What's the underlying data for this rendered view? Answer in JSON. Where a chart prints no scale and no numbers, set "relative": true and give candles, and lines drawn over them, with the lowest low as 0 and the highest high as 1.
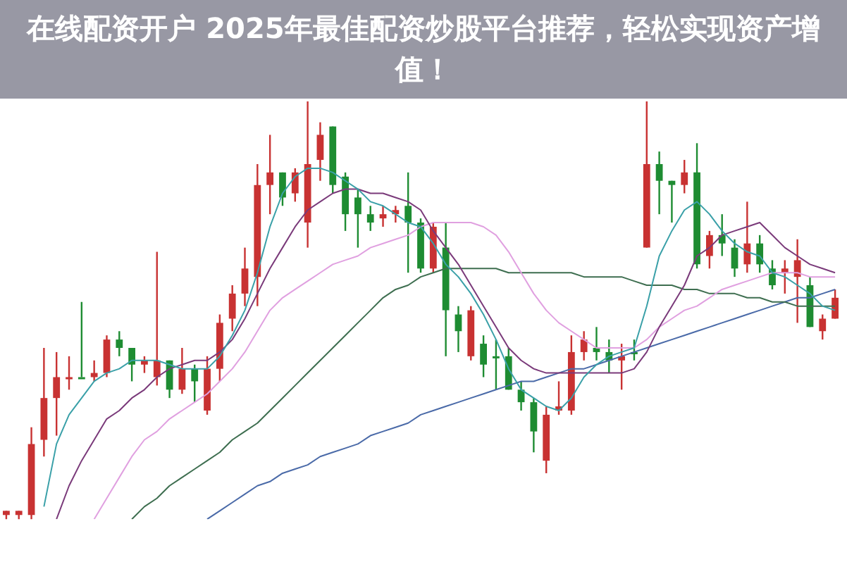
{
  "chart_data": {
    "type": "candlestick",
    "title": "在线配资开户 2025年最佳配资炒股平台推荐，轻松实现资产增值！",
    "relative": true,
    "legend": false,
    "marker": "none",
    "categories": [
      null,
      null,
      null,
      null,
      null,
      null,
      null,
      null,
      null,
      null,
      null,
      null,
      null,
      null,
      null,
      null,
      null,
      null,
      null,
      null,
      null,
      null,
      null,
      null,
      null,
      null,
      null,
      null,
      null,
      null,
      null,
      null,
      null,
      null,
      null,
      null,
      null,
      null,
      null,
      null,
      null,
      null,
      null,
      null,
      null,
      null,
      null,
      null,
      null,
      null,
      null,
      null,
      null,
      null,
      null,
      null,
      null,
      null,
      null,
      null,
      null,
      null,
      null,
      null,
      null,
      null,
      null
    ],
    "ohlc": [
      [
        0.01,
        0.02,
        0,
        0.02
      ],
      [
        0.01,
        0.02,
        0,
        0.02
      ],
      [
        0.01,
        0.22,
        0,
        0.18
      ],
      [
        0.19,
        0.41,
        0.15,
        0.29
      ],
      [
        0.29,
        0.4,
        0.2,
        0.34
      ],
      [
        0.34,
        0.39,
        0.31,
        0.34
      ],
      [
        0.34,
        0.52,
        0.34,
        0.34
      ],
      [
        0.34,
        0.38,
        0.33,
        0.35
      ],
      [
        0.35,
        0.44,
        0.34,
        0.43
      ],
      [
        0.43,
        0.45,
        0.39,
        0.41
      ],
      [
        0.41,
        0.41,
        0.33,
        0.37
      ],
      [
        0.37,
        0.39,
        0.35,
        0.38
      ],
      [
        0.34,
        0.64,
        0.32,
        0.38
      ],
      [
        0.38,
        0.38,
        0.29,
        0.31
      ],
      [
        0.31,
        0.41,
        0.3,
        0.36
      ],
      [
        0.36,
        0.37,
        0.28,
        0.33
      ],
      [
        0.26,
        0.39,
        0.25,
        0.36
      ],
      [
        0.36,
        0.49,
        0.33,
        0.47
      ],
      [
        0.48,
        0.56,
        0.45,
        0.54
      ],
      [
        0.54,
        0.65,
        0.51,
        0.6
      ],
      [
        0.58,
        0.85,
        0.51,
        0.8
      ],
      [
        0.8,
        0.92,
        0.73,
        0.83
      ],
      [
        0.83,
        0.83,
        0.75,
        0.77
      ],
      [
        0.78,
        0.84,
        0.76,
        0.83
      ],
      [
        0.71,
        1,
        0.65,
        0.85
      ],
      [
        0.86,
        0.95,
        0.81,
        0.92
      ],
      [
        0.94,
        0.94,
        0.78,
        0.8
      ],
      [
        0.82,
        0.83,
        0.69,
        0.73
      ],
      [
        0.77,
        0.79,
        0.65,
        0.73
      ],
      [
        0.73,
        0.75,
        0.69,
        0.71
      ],
      [
        0.72,
        0.75,
        0.7,
        0.73
      ],
      [
        0.73,
        0.75,
        0.71,
        0.74
      ],
      [
        0.75,
        0.83,
        0.59,
        0.71
      ],
      [
        0.71,
        0.72,
        0.59,
        0.6
      ],
      [
        0.6,
        0.71,
        0.59,
        0.7
      ],
      [
        0.65,
        0.71,
        0.39,
        0.5
      ],
      [
        0.49,
        0.51,
        0.4,
        0.45
      ],
      [
        0.39,
        0.51,
        0.38,
        0.5
      ],
      [
        0.42,
        0.44,
        0.34,
        0.37
      ],
      [
        0.39,
        0.43,
        0.31,
        0.39
      ],
      [
        0.39,
        0.41,
        0.31,
        0.31
      ],
      [
        0.31,
        0.33,
        0.26,
        0.28
      ],
      [
        0.28,
        0.29,
        0.16,
        0.21
      ],
      [
        0.14,
        0.27,
        0.11,
        0.25
      ],
      [
        0.26,
        0.33,
        0.25,
        0.27
      ],
      [
        0.26,
        0.44,
        0.25,
        0.4
      ],
      [
        0.4,
        0.45,
        0.38,
        0.43
      ],
      [
        0.41,
        0.46,
        0.38,
        0.4
      ],
      [
        0.4,
        0.43,
        0.35,
        0.38
      ],
      [
        0.38,
        0.42,
        0.31,
        0.39
      ],
      [
        0.4,
        0.43,
        0.38,
        0.4
      ],
      [
        0.65,
        1,
        0.65,
        0.85
      ],
      [
        0.85,
        0.88,
        0.73,
        0.81
      ],
      [
        0.81,
        0.81,
        0.71,
        0.8
      ],
      [
        0.8,
        0.86,
        0.78,
        0.83
      ],
      [
        0.83,
        0.9,
        0.6,
        0.61
      ],
      [
        0.63,
        0.69,
        0.6,
        0.68
      ],
      [
        0.68,
        0.73,
        0.63,
        0.66
      ],
      [
        0.65,
        0.67,
        0.58,
        0.6
      ],
      [
        0.61,
        0.76,
        0.59,
        0.66
      ],
      [
        0.66,
        0.68,
        0.59,
        0.61
      ],
      [
        0.6,
        0.62,
        0.55,
        0.56
      ],
      [
        0.59,
        0.62,
        0.54,
        0.6
      ],
      [
        0.58,
        0.67,
        0.47,
        0.62
      ],
      [
        0.56,
        0.58,
        0.46,
        0.46
      ],
      [
        0.45,
        0.49,
        0.43,
        0.48
      ],
      [
        0.48,
        0.55,
        0.48,
        0.53
      ]
    ],
    "colors": [
      "#c83232",
      "#c83232",
      "#c83232",
      "#c83232",
      "#c83232",
      "#c83232",
      "#1e8c32",
      "#c83232",
      "#c83232",
      "#1e8c32",
      "#1e8c32",
      "#c83232",
      "#c83232",
      "#1e8c32",
      "#c83232",
      "#1e8c32",
      "#c83232",
      "#c83232",
      "#c83232",
      "#c83232",
      "#c83232",
      "#c83232",
      "#1e8c32",
      "#c83232",
      "#c83232",
      "#c83232",
      "#1e8c32",
      "#1e8c32",
      "#1e8c32",
      "#1e8c32",
      "#c83232",
      "#c83232",
      "#1e8c32",
      "#1e8c32",
      "#c83232",
      "#1e8c32",
      "#1e8c32",
      "#c83232",
      "#1e8c32",
      "#1e8c32",
      "#1e8c32",
      "#1e8c32",
      "#1e8c32",
      "#c83232",
      "#c83232",
      "#c83232",
      "#c83232",
      "#1e8c32",
      "#1e8c32",
      "#c83232",
      "#1e8c32",
      "#c83232",
      "#1e8c32",
      "#1e8c32",
      "#c83232",
      "#1e8c32",
      "#c83232",
      "#1e8c32",
      "#1e8c32",
      "#c83232",
      "#1e8c32",
      "#1e8c32",
      "#c83232",
      "#c83232",
      "#1e8c32",
      "#c83232",
      "#c83232"
    ],
    "series": [
      {
        "type": "line",
        "color": "#3aa0a8",
        "values": [
          null,
          null,
          null,
          0.03,
          0.18,
          0.25,
          0.29,
          0.33,
          0.35,
          0.36,
          0.38,
          0.38,
          0.38,
          0.37,
          0.36,
          0.36,
          0.36,
          0.39,
          0.44,
          0.5,
          0.59,
          0.7,
          0.78,
          0.82,
          0.84,
          0.84,
          0.83,
          0.81,
          0.79,
          0.76,
          0.75,
          0.73,
          0.71,
          0.7,
          0.66,
          0.61,
          0.58,
          0.54,
          0.49,
          0.43,
          0.36,
          0.31,
          0.29,
          0.27,
          0.26,
          0.29,
          0.34,
          0.37,
          0.39,
          0.4,
          0.41,
          0.51,
          0.63,
          0.69,
          0.74,
          0.76,
          0.73,
          0.69,
          0.66,
          0.64,
          0.63,
          0.59,
          0.58,
          0.56,
          0.54,
          0.51,
          0.5
        ]
      },
      {
        "type": "line",
        "color": "#7a3a7a",
        "values": [
          null,
          null,
          null,
          null,
          0,
          0.08,
          0.14,
          0.19,
          0.24,
          0.26,
          0.29,
          0.31,
          0.34,
          0.36,
          0.37,
          0.38,
          0.38,
          0.4,
          0.43,
          0.48,
          0.54,
          0.6,
          0.65,
          0.7,
          0.74,
          0.76,
          0.78,
          0.79,
          0.79,
          0.78,
          0.78,
          0.77,
          0.76,
          0.74,
          0.69,
          0.65,
          0.61,
          0.56,
          0.51,
          0.46,
          0.41,
          0.38,
          0.36,
          0.35,
          0.35,
          0.35,
          0.35,
          0.35,
          0.35,
          0.35,
          0.36,
          0.4,
          0.46,
          0.51,
          0.56,
          0.63,
          0.65,
          0.68,
          0.69,
          0.7,
          0.71,
          0.68,
          0.65,
          0.63,
          0.61,
          0.6,
          0.59
        ]
      },
      {
        "type": "line",
        "color": "#e0a0e0",
        "values": [
          null,
          null,
          null,
          null,
          null,
          null,
          null,
          0,
          0.05,
          0.1,
          0.15,
          0.19,
          0.21,
          0.24,
          0.26,
          0.28,
          0.3,
          0.33,
          0.36,
          0.4,
          0.45,
          0.5,
          0.53,
          0.55,
          0.57,
          0.59,
          0.61,
          0.62,
          0.63,
          0.65,
          0.66,
          0.67,
          0.68,
          0.7,
          0.71,
          0.71,
          0.71,
          0.71,
          0.7,
          0.68,
          0.64,
          0.59,
          0.54,
          0.5,
          0.47,
          0.45,
          0.43,
          0.41,
          0.41,
          0.41,
          0.41,
          0.43,
          0.46,
          0.48,
          0.5,
          0.51,
          0.53,
          0.55,
          0.56,
          0.57,
          0.58,
          0.59,
          0.59,
          0.59,
          0.58,
          0.58,
          0.58
        ]
      },
      {
        "type": "line",
        "color": "#3e6e50",
        "values": [
          null,
          null,
          null,
          null,
          null,
          null,
          null,
          null,
          null,
          null,
          0,
          0.03,
          0.05,
          0.08,
          0.1,
          0.12,
          0.14,
          0.16,
          0.19,
          0.21,
          0.23,
          0.26,
          0.29,
          0.32,
          0.35,
          0.38,
          0.41,
          0.44,
          0.47,
          0.5,
          0.53,
          0.55,
          0.56,
          0.58,
          0.59,
          0.6,
          0.6,
          0.6,
          0.6,
          0.6,
          0.59,
          0.59,
          0.59,
          0.59,
          0.59,
          0.59,
          0.58,
          0.58,
          0.58,
          0.58,
          0.57,
          0.56,
          0.56,
          0.56,
          0.55,
          0.55,
          0.54,
          0.54,
          0.54,
          0.53,
          0.53,
          0.52,
          0.52,
          0.51,
          0.51,
          0.51,
          0.51
        ]
      },
      {
        "type": "line",
        "color": "#4a6aa8",
        "values": [
          null,
          null,
          null,
          null,
          null,
          null,
          null,
          null,
          null,
          null,
          null,
          null,
          null,
          null,
          null,
          null,
          0,
          0.02,
          0.04,
          0.06,
          0.08,
          0.09,
          0.11,
          0.12,
          0.13,
          0.15,
          0.16,
          0.17,
          0.18,
          0.2,
          0.21,
          0.22,
          0.23,
          0.25,
          0.26,
          0.27,
          0.28,
          0.29,
          0.3,
          0.31,
          0.32,
          0.33,
          0.33,
          0.34,
          0.35,
          0.36,
          0.36,
          0.37,
          0.38,
          0.39,
          0.4,
          0.41,
          0.42,
          0.43,
          0.44,
          0.45,
          0.46,
          0.47,
          0.48,
          0.49,
          0.5,
          0.51,
          0.52,
          0.53,
          0.53,
          0.54,
          0.55
        ]
      }
    ]
  }
}
